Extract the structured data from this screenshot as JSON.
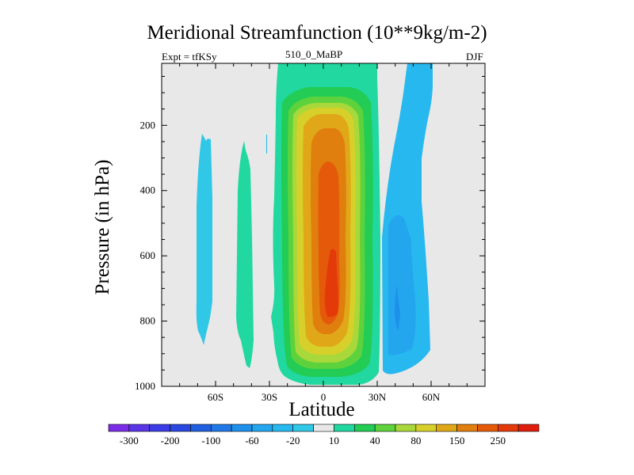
{
  "chart_data": {
    "type": "contour",
    "title": "Meridional Streamfunction (10**9kg/m-2)",
    "left_string": "Expt = tfKSy",
    "center_string": "510_0_MaBP",
    "right_string": "DJF",
    "xlabel": "Latitude",
    "ylabel": "Pressure (in hPa)",
    "xlim": [
      -90,
      90
    ],
    "ylim": [
      1000,
      10
    ],
    "x_ticks": [
      {
        "value": -60,
        "label": "60S"
      },
      {
        "value": -30,
        "label": "30S"
      },
      {
        "value": 0,
        "label": "0"
      },
      {
        "value": 30,
        "label": "30N"
      },
      {
        "value": 60,
        "label": "60N"
      }
    ],
    "y_ticks": [
      {
        "value": 200,
        "label": "200"
      },
      {
        "value": 400,
        "label": "400"
      },
      {
        "value": 600,
        "label": "600"
      },
      {
        "value": 800,
        "label": "800"
      },
      {
        "value": 1000,
        "label": "1000"
      }
    ],
    "colorbar": {
      "levels": [
        -300,
        -250,
        -200,
        -150,
        -100,
        -80,
        -60,
        -40,
        -20,
        -10,
        10,
        20,
        40,
        60,
        80,
        100,
        150,
        200,
        250,
        300
      ],
      "labels": [
        "-300",
        "-200",
        "-100",
        "-60",
        "-20",
        "10",
        "40",
        "80",
        "150",
        "250"
      ],
      "colors": [
        "#7b2ce6",
        "#5a35e6",
        "#3c3ce6",
        "#2a48e0",
        "#1f5fe0",
        "#1f78e6",
        "#1f90ea",
        "#23a6ee",
        "#26b8ee",
        "#30c8e6",
        "#e8e8e8",
        "#20d8a0",
        "#22cc55",
        "#5ed23c",
        "#a8d83a",
        "#d8d02a",
        "#e0a818",
        "#e07e0e",
        "#e45a0a",
        "#e43a0a",
        "#e01c0c"
      ]
    },
    "contour_regions": [
      {
        "name": "southern-negative-cell",
        "value_range": [
          -20,
          -10
        ],
        "lat_range": [
          -70,
          -62
        ],
        "p_range": [
          220,
          870
        ]
      },
      {
        "name": "south-midlat-positive-cell",
        "value_range": [
          10,
          20
        ],
        "lat_range": [
          -47,
          -40
        ],
        "p_range": [
          240,
          940
        ]
      },
      {
        "name": "tropical-positive-cell",
        "value_range": [
          10,
          250
        ],
        "lat_range": [
          -28,
          30
        ],
        "p_range": [
          10,
          1000
        ],
        "max_value_level": 250
      },
      {
        "name": "northern-negative-cell",
        "value_range": [
          -40,
          -10
        ],
        "lat_range": [
          24,
          60
        ],
        "p_range": [
          10,
          975
        ]
      }
    ]
  }
}
